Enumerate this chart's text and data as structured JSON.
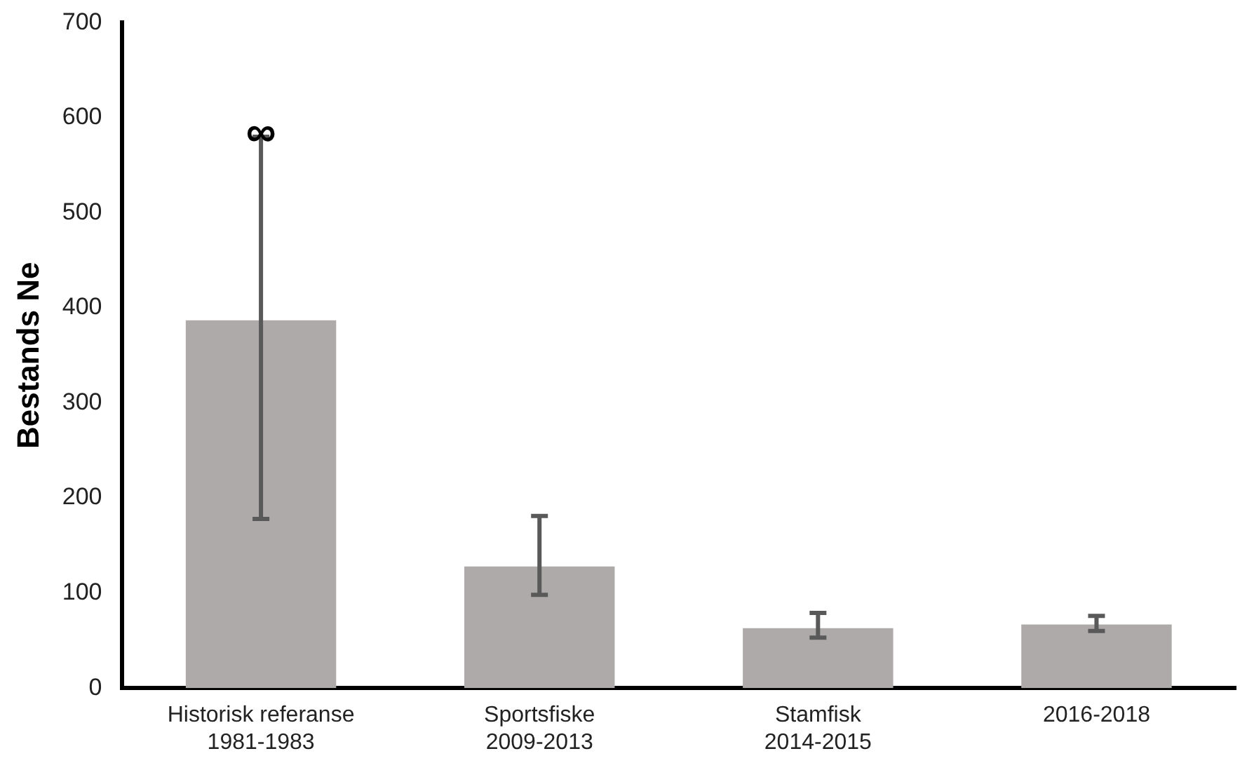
{
  "chart_data": {
    "type": "bar",
    "ylabel": "Bestands Ne",
    "categories": [
      "Historisk referanse\n1981-1983",
      "Sportsfiske\n2009-2013",
      "Stamfisk\n2014-2015",
      "2016-2018"
    ],
    "values": [
      387,
      128,
      63,
      67
    ],
    "errors": [
      [
        178,
        580
      ],
      [
        98,
        181
      ],
      [
        53,
        79
      ],
      [
        60,
        76
      ]
    ],
    "color": "#aeaaaa",
    "ylim": [
      0,
      700
    ],
    "yticks": [
      0,
      100,
      200,
      300,
      400,
      500,
      600,
      700
    ],
    "grid": false,
    "annotations": [
      {
        "text": "∞",
        "x": "Historisk referanse\n1981-1983",
        "y": 580
      }
    ]
  }
}
